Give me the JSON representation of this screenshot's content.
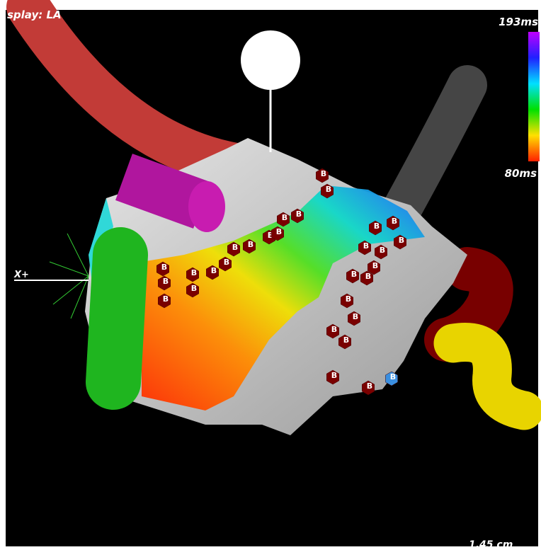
{
  "viewer": {
    "display_label": "splay: LA",
    "color_scale": {
      "max_label": "193ms",
      "min_label": "80ms"
    },
    "axis_label": "X+",
    "scale_bar_label": "1.45 cm",
    "markers": [
      "B",
      "B",
      "B",
      "B",
      "B",
      "B",
      "B",
      "B",
      "B",
      "B",
      "B",
      "B",
      "B",
      "B",
      "B",
      "B",
      "B",
      "B",
      "B",
      "B",
      "B",
      "B",
      "B",
      "B",
      "B",
      "B",
      "B",
      "B",
      "B",
      "B"
    ]
  }
}
